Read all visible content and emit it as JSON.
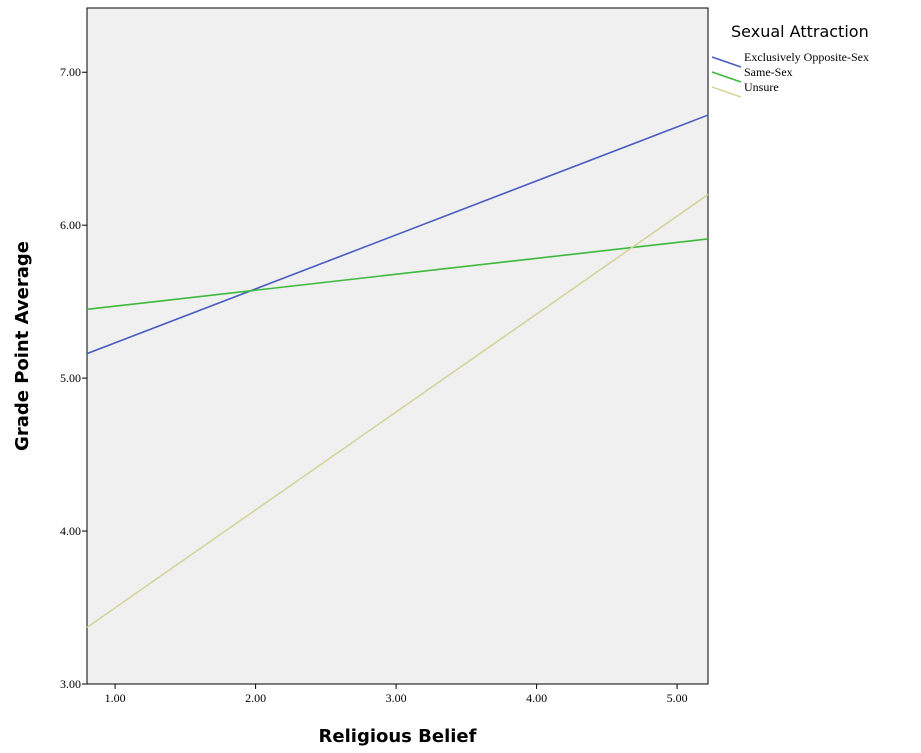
{
  "chart_data": {
    "type": "line",
    "xlabel": "Religious Belief",
    "ylabel": "Grade Point Average",
    "xlim": [
      0.8,
      5.22
    ],
    "ylim": [
      3.0,
      7.42
    ],
    "xticks": [
      "1.00",
      "2.00",
      "3.00",
      "4.00",
      "5.00"
    ],
    "yticks": [
      "3.00",
      "4.00",
      "5.00",
      "6.00",
      "7.00"
    ],
    "xtick_values": [
      1,
      2,
      3,
      4,
      5
    ],
    "ytick_values": [
      3,
      4,
      5,
      6,
      7
    ],
    "grid": false,
    "plot_background": "#f0f0f0",
    "legend": {
      "title": "Sexual Attraction",
      "position": "right-top"
    },
    "series": [
      {
        "name": "Exclusively Opposite-Sex",
        "color": "#4a5cc0",
        "x": [
          0.8,
          5.22
        ],
        "y": [
          5.16,
          6.72
        ]
      },
      {
        "name": "Same-Sex",
        "color": "#3cba3c",
        "x": [
          0.8,
          5.22
        ],
        "y": [
          5.45,
          5.91
        ]
      },
      {
        "name": "Unsure",
        "color": "#d4d49c",
        "x": [
          0.8,
          5.22
        ],
        "y": [
          3.37,
          6.2
        ]
      }
    ]
  }
}
